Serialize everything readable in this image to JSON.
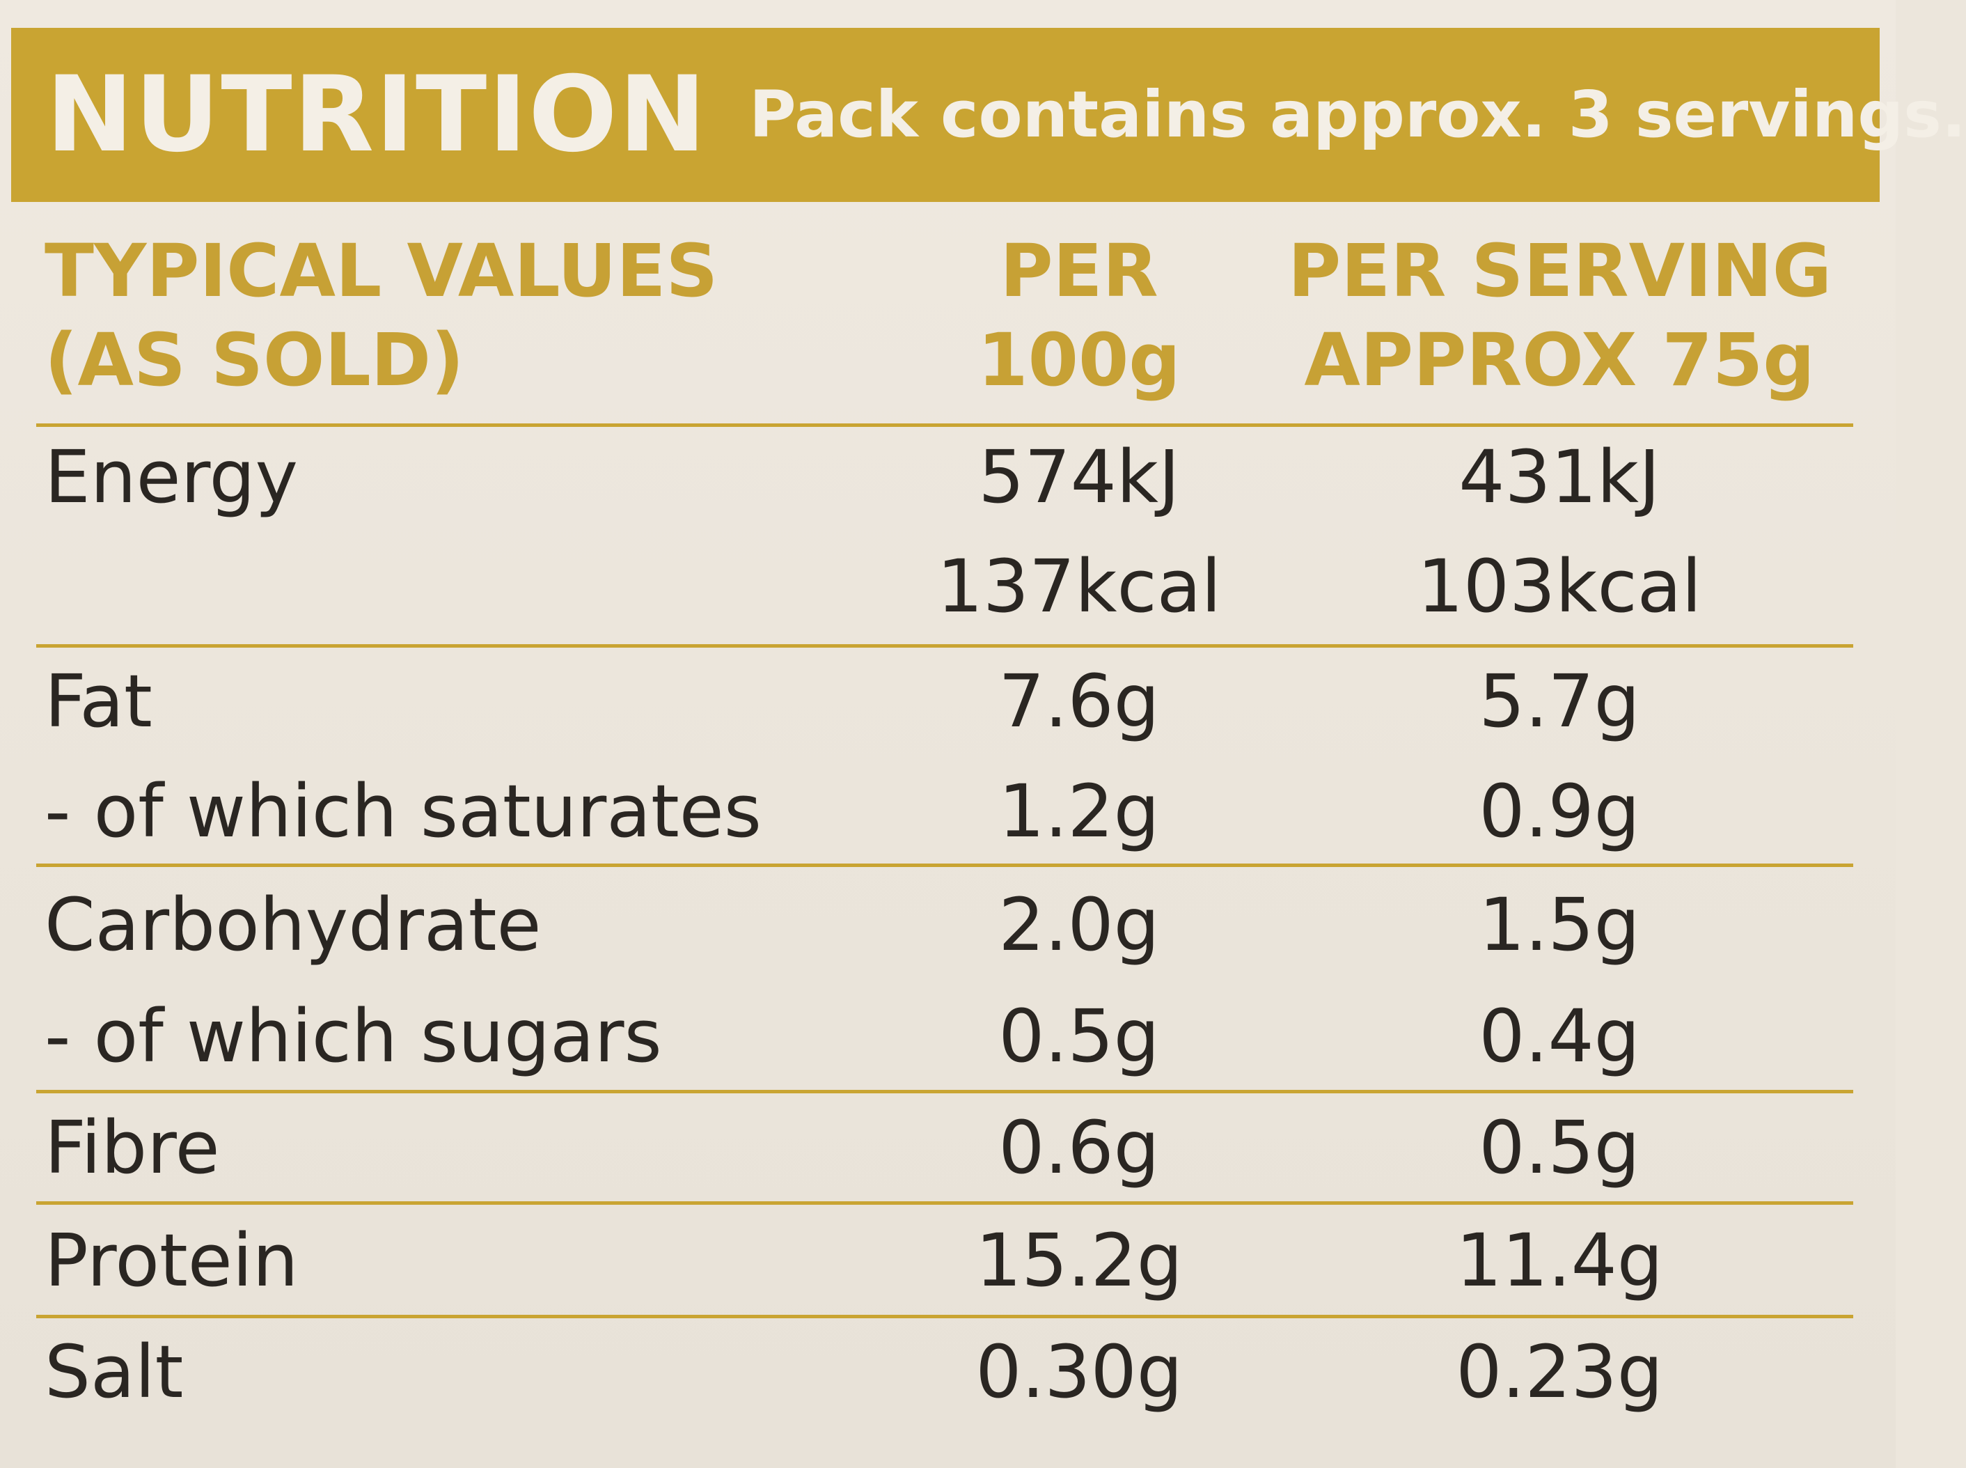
{
  "header": {
    "title": "NUTRITION",
    "subtitle": "Pack contains approx. 3 servings."
  },
  "columns": {
    "label_line1": "TYPICAL VALUES",
    "label_line2": "(AS SOLD)",
    "per100_line1": "PER",
    "per100_line2": "100g",
    "serving_line1": "PER SERVING",
    "serving_line2": "APPROX 75g"
  },
  "rows": [
    {
      "name": "Energy",
      "per100": "574kJ",
      "serving": "431kJ"
    },
    {
      "name": "",
      "per100": "137kcal",
      "serving": "103kcal"
    },
    {
      "name": "Fat",
      "per100": "7.6g",
      "serving": "5.7g"
    },
    {
      "name": "- of which saturates",
      "per100": "1.2g",
      "serving": "0.9g"
    },
    {
      "name": "Carbohydrate",
      "per100": "2.0g",
      "serving": "1.5g"
    },
    {
      "name": "- of which sugars",
      "per100": "0.5g",
      "serving": "0.4g"
    },
    {
      "name": "Fibre",
      "per100": "0.6g",
      "serving": "0.5g"
    },
    {
      "name": "Protein",
      "per100": "15.2g",
      "serving": "11.4g"
    },
    {
      "name": "Salt",
      "per100": "0.30g",
      "serving": "0.23g"
    }
  ],
  "colors": {
    "accent": "#c9a432",
    "header_text": "#f4efe6",
    "body_text": "#2a2622",
    "background": "#ece6dc"
  }
}
